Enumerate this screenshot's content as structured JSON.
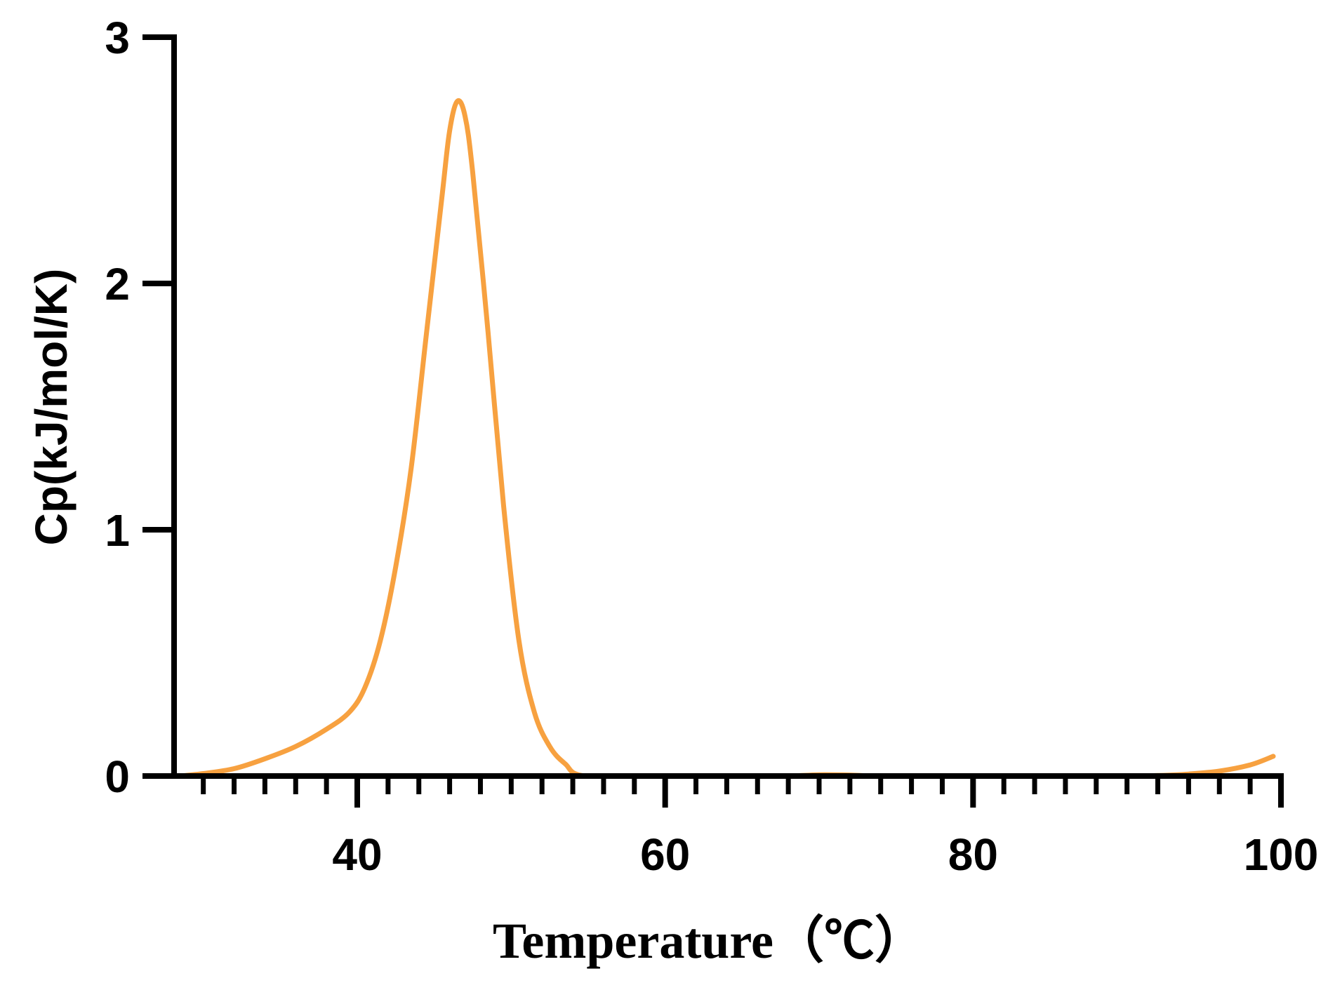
{
  "chart_data": {
    "type": "line",
    "title": "",
    "xlabel": "Temperature（℃）",
    "ylabel": "Cp(kJ/mol/K)",
    "xlim": [
      28.5,
      100
    ],
    "ylim": [
      0,
      3
    ],
    "x_ticks": [
      40,
      60,
      80,
      100
    ],
    "y_ticks": [
      0,
      1,
      2,
      3
    ],
    "x_tick_labels": [
      "40",
      "60",
      "80",
      "100"
    ],
    "y_tick_labels": [
      "0",
      "1",
      "2",
      "3"
    ],
    "x_minor_step": 2,
    "grid": false,
    "legend": "none",
    "series": [
      {
        "color": "#F7A140",
        "points": [
          [
            28.5,
            0.0
          ],
          [
            30,
            0.01
          ],
          [
            32,
            0.03
          ],
          [
            34,
            0.07
          ],
          [
            36,
            0.12
          ],
          [
            38,
            0.19
          ],
          [
            39.5,
            0.26
          ],
          [
            40.5,
            0.36
          ],
          [
            41.5,
            0.55
          ],
          [
            42.5,
            0.85
          ],
          [
            43.5,
            1.25
          ],
          [
            44.5,
            1.8
          ],
          [
            45.5,
            2.35
          ],
          [
            46,
            2.62
          ],
          [
            46.5,
            2.74
          ],
          [
            47,
            2.68
          ],
          [
            47.5,
            2.45
          ],
          [
            48.5,
            1.8
          ],
          [
            49.5,
            1.1
          ],
          [
            50.5,
            0.55
          ],
          [
            51.5,
            0.26
          ],
          [
            52.5,
            0.12
          ],
          [
            53.5,
            0.05
          ],
          [
            54.8,
            0.0
          ],
          [
            60,
            0.0
          ],
          [
            66,
            0.0
          ],
          [
            68,
            0.0
          ],
          [
            70,
            0.005
          ],
          [
            72,
            0.004
          ],
          [
            74,
            0.0
          ],
          [
            80,
            0.0
          ],
          [
            90,
            0.0
          ],
          [
            92,
            0.002
          ],
          [
            94,
            0.008
          ],
          [
            96,
            0.02
          ],
          [
            98,
            0.045
          ],
          [
            99.5,
            0.08
          ]
        ]
      }
    ]
  }
}
